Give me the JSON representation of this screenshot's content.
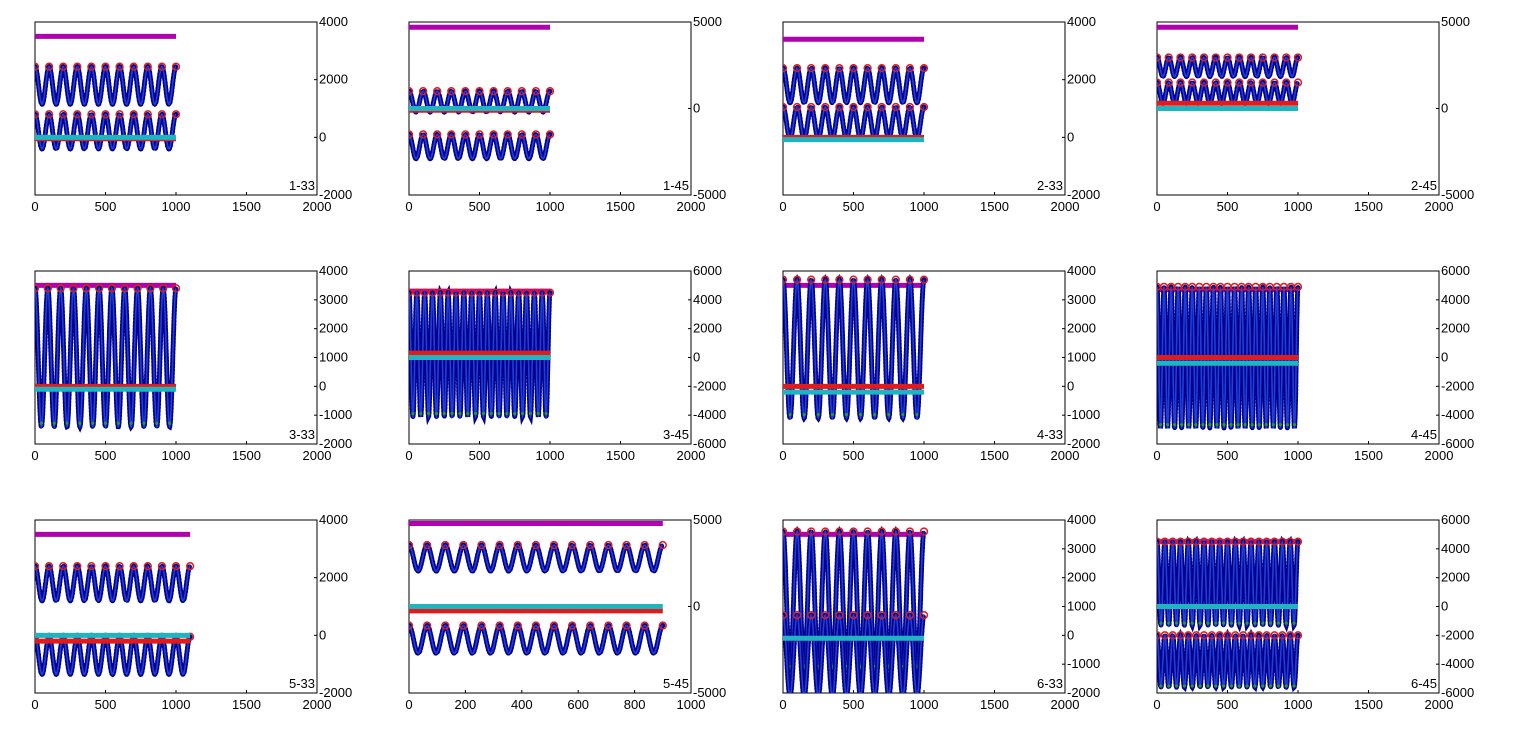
{
  "figure": {
    "colors": {
      "sine_line": "#1f3fd8",
      "sine_marker": "#00008b",
      "peak_marker": "#e01b1b",
      "inner_marker": "#20a020",
      "flat_magenta": "#b000b0",
      "flat_red": "#e01b1b",
      "flat_cyan": "#1fb5c0",
      "axes": "#000000",
      "background": "#ffffff"
    }
  },
  "chart_data": [
    {
      "type": "line",
      "label": "1-33",
      "xlim": [
        0,
        2000
      ],
      "xticks": [
        0,
        500,
        1000,
        1500,
        2000
      ],
      "ylim": [
        -2000,
        4000
      ],
      "yticks": [
        -2000,
        0,
        2000,
        4000
      ],
      "xend": 1000,
      "series": [
        {
          "kind": "flat",
          "color": "magenta",
          "y": 3500,
          "xmax": 1000
        },
        {
          "kind": "sine",
          "center": 1800,
          "amp": 650,
          "cycles": 10,
          "xmax": 1000
        },
        {
          "kind": "sine",
          "center": 200,
          "amp": 600,
          "cycles": 10,
          "xmax": 1000
        },
        {
          "kind": "flat",
          "color": "red",
          "y": -50,
          "xmax": 1000
        },
        {
          "kind": "flat",
          "color": "cyan",
          "y": 0,
          "xmax": 1000
        }
      ]
    },
    {
      "type": "line",
      "label": "1-45",
      "xlim": [
        0,
        2000
      ],
      "xticks": [
        0,
        500,
        1000,
        1500,
        2000
      ],
      "ylim": [
        -5000,
        5000
      ],
      "yticks": [
        -5000,
        0,
        5000
      ],
      "xend": 1000,
      "series": [
        {
          "kind": "flat",
          "color": "magenta",
          "y": 4700,
          "xmax": 1000
        },
        {
          "kind": "sine",
          "center": 400,
          "amp": 600,
          "cycles": 10,
          "xmax": 1000
        },
        {
          "kind": "sine",
          "center": -2200,
          "amp": 700,
          "cycles": 10,
          "xmax": 1000
        },
        {
          "kind": "flat",
          "color": "red",
          "y": -100,
          "xmax": 1000
        },
        {
          "kind": "flat",
          "color": "cyan",
          "y": 0,
          "xmax": 1000
        }
      ]
    },
    {
      "type": "line",
      "label": "2-33",
      "xlim": [
        0,
        2000
      ],
      "xticks": [
        0,
        500,
        1000,
        1500,
        2000
      ],
      "ylim": [
        -2000,
        4000
      ],
      "yticks": [
        -2000,
        0,
        2000,
        4000
      ],
      "xend": 1000,
      "series": [
        {
          "kind": "flat",
          "color": "magenta",
          "y": 3400,
          "xmax": 1000
        },
        {
          "kind": "sine",
          "center": 1800,
          "amp": 600,
          "cycles": 10,
          "xmax": 1000
        },
        {
          "kind": "sine",
          "center": 500,
          "amp": 550,
          "cycles": 10,
          "xmax": 1000
        },
        {
          "kind": "flat",
          "color": "red",
          "y": 0,
          "xmax": 1000
        },
        {
          "kind": "flat",
          "color": "cyan",
          "y": -80,
          "xmax": 1000
        }
      ]
    },
    {
      "type": "line",
      "label": "2-45",
      "xlim": [
        0,
        2000
      ],
      "xticks": [
        0,
        500,
        1000,
        1500,
        2000
      ],
      "ylim": [
        -5000,
        5000
      ],
      "yticks": [
        -5000,
        0,
        5000
      ],
      "xend": 1000,
      "series": [
        {
          "kind": "flat",
          "color": "magenta",
          "y": 4700,
          "xmax": 1000
        },
        {
          "kind": "sine",
          "center": 2400,
          "amp": 550,
          "cycles": 12,
          "xmax": 1000
        },
        {
          "kind": "sine",
          "center": 900,
          "amp": 600,
          "cycles": 12,
          "xmax": 1000
        },
        {
          "kind": "flat",
          "color": "red",
          "y": 300,
          "xmax": 1000
        },
        {
          "kind": "flat",
          "color": "cyan",
          "y": 0,
          "xmax": 1000
        }
      ]
    },
    {
      "type": "line",
      "label": "3-33",
      "xlim": [
        0,
        2000
      ],
      "xticks": [
        0,
        500,
        1000,
        1500,
        2000
      ],
      "ylim": [
        -2000,
        4000
      ],
      "yticks": [
        -2000,
        -1000,
        0,
        1000,
        2000,
        3000,
        4000
      ],
      "xend": 1000,
      "series": [
        {
          "kind": "flat",
          "color": "magenta",
          "y": 3500,
          "xmax": 1000
        },
        {
          "kind": "sine",
          "center": 1000,
          "amp": 2400,
          "cycles": 11,
          "xmax": 1000
        },
        {
          "kind": "flat",
          "color": "red",
          "y": 0,
          "xmax": 1000
        },
        {
          "kind": "flat",
          "color": "cyan",
          "y": -100,
          "xmax": 1000
        }
      ]
    },
    {
      "type": "line",
      "label": "3-45",
      "xlim": [
        0,
        2000
      ],
      "xticks": [
        0,
        500,
        1000,
        1500,
        2000
      ],
      "ylim": [
        -6000,
        6000
      ],
      "yticks": [
        -6000,
        -4000,
        -2000,
        0,
        2000,
        4000,
        6000
      ],
      "xend": 1000,
      "series": [
        {
          "kind": "flat",
          "color": "magenta",
          "y": 4600,
          "xmax": 1000
        },
        {
          "kind": "sine",
          "center": 200,
          "amp": 4300,
          "cycles": 18,
          "xmax": 1000
        },
        {
          "kind": "flat",
          "color": "red",
          "y": 300,
          "xmax": 1000
        },
        {
          "kind": "flat",
          "color": "cyan",
          "y": 0,
          "xmax": 1000
        }
      ]
    },
    {
      "type": "line",
      "label": "4-33",
      "xlim": [
        0,
        2000
      ],
      "xticks": [
        0,
        500,
        1000,
        1500,
        2000
      ],
      "ylim": [
        -2000,
        4000
      ],
      "yticks": [
        -2000,
        -1000,
        0,
        1000,
        2000,
        3000,
        4000
      ],
      "xend": 1000,
      "series": [
        {
          "kind": "flat",
          "color": "magenta",
          "y": 3500,
          "xmax": 1000
        },
        {
          "kind": "sine",
          "center": 1300,
          "amp": 2400,
          "cycles": 10,
          "xmax": 1000
        },
        {
          "kind": "flat",
          "color": "red",
          "y": 0,
          "xmax": 1000
        },
        {
          "kind": "flat",
          "color": "cyan",
          "y": -200,
          "xmax": 1000
        }
      ]
    },
    {
      "type": "line",
      "label": "4-45",
      "xlim": [
        0,
        2000
      ],
      "xticks": [
        0,
        500,
        1000,
        1500,
        2000
      ],
      "ylim": [
        -6000,
        6000
      ],
      "yticks": [
        -6000,
        -4000,
        -2000,
        0,
        2000,
        4000,
        6000
      ],
      "xend": 1000,
      "series": [
        {
          "kind": "flat",
          "color": "magenta",
          "y": 4700,
          "xmax": 1000
        },
        {
          "kind": "sine",
          "center": 0,
          "amp": 4900,
          "cycles": 20,
          "xmax": 1000
        },
        {
          "kind": "flat",
          "color": "red",
          "y": 0,
          "xmax": 1000
        },
        {
          "kind": "flat",
          "color": "cyan",
          "y": -400,
          "xmax": 1000
        }
      ]
    },
    {
      "type": "line",
      "label": "5-33",
      "xlim": [
        0,
        2000
      ],
      "xticks": [
        0,
        500,
        1000,
        1500,
        2000
      ],
      "ylim": [
        -2000,
        4000
      ],
      "yticks": [
        -2000,
        0,
        2000,
        4000
      ],
      "xend": 1100,
      "series": [
        {
          "kind": "flat",
          "color": "magenta",
          "y": 3500,
          "xmax": 1100
        },
        {
          "kind": "sine",
          "center": 1800,
          "amp": 600,
          "cycles": 11,
          "xmax": 1100
        },
        {
          "kind": "sine",
          "center": -700,
          "amp": 650,
          "cycles": 11,
          "xmax": 1100
        },
        {
          "kind": "flat",
          "color": "red",
          "y": -200,
          "xmax": 1100
        },
        {
          "kind": "flat",
          "color": "cyan",
          "y": 0,
          "xmax": 1100
        }
      ]
    },
    {
      "type": "line",
      "label": "5-45",
      "xlim": [
        0,
        1000
      ],
      "xticks": [
        0,
        200,
        400,
        600,
        800,
        1000
      ],
      "ylim": [
        -5000,
        5000
      ],
      "yticks": [
        -5000,
        0,
        5000
      ],
      "xend": 900,
      "series": [
        {
          "kind": "flat",
          "color": "magenta",
          "y": 4800,
          "xmax": 900
        },
        {
          "kind": "sine",
          "center": 2800,
          "amp": 750,
          "cycles": 14,
          "xmax": 900
        },
        {
          "kind": "sine",
          "center": -1900,
          "amp": 800,
          "cycles": 14,
          "xmax": 900
        },
        {
          "kind": "flat",
          "color": "red",
          "y": -250,
          "xmax": 900
        },
        {
          "kind": "flat",
          "color": "cyan",
          "y": 0,
          "xmax": 900
        }
      ]
    },
    {
      "type": "line",
      "label": "6-33",
      "xlim": [
        0,
        2000
      ],
      "xticks": [
        0,
        500,
        1000,
        1500,
        2000
      ],
      "ylim": [
        -2000,
        4000
      ],
      "yticks": [
        -2000,
        -1000,
        0,
        1000,
        2000,
        3000,
        4000
      ],
      "xend": 1000,
      "series": [
        {
          "kind": "flat",
          "color": "magenta",
          "y": 3500,
          "xmax": 1000
        },
        {
          "kind": "sine",
          "center": 1200,
          "amp": 2400,
          "cycles": 10,
          "xmax": 1000
        },
        {
          "kind": "sine",
          "center": -700,
          "amp": 1400,
          "cycles": 10,
          "xmax": 1000
        },
        {
          "kind": "flat",
          "color": "cyan",
          "y": -100,
          "xmax": 1000
        }
      ]
    },
    {
      "type": "line",
      "label": "6-45",
      "xlim": [
        0,
        2000
      ],
      "xticks": [
        0,
        500,
        1000,
        1500,
        2000
      ],
      "ylim": [
        -6000,
        6000
      ],
      "yticks": [
        -6000,
        -4000,
        -2000,
        0,
        2000,
        4000,
        6000
      ],
      "xend": 1000,
      "series": [
        {
          "kind": "flat",
          "color": "magenta",
          "y": 4500,
          "xmax": 1000
        },
        {
          "kind": "sine",
          "center": 1600,
          "amp": 2900,
          "cycles": 18,
          "xmax": 1000
        },
        {
          "kind": "sine",
          "center": -3800,
          "amp": 1800,
          "cycles": 18,
          "xmax": 1000
        },
        {
          "kind": "flat",
          "color": "cyan",
          "y": 0,
          "xmax": 1000
        }
      ]
    }
  ]
}
